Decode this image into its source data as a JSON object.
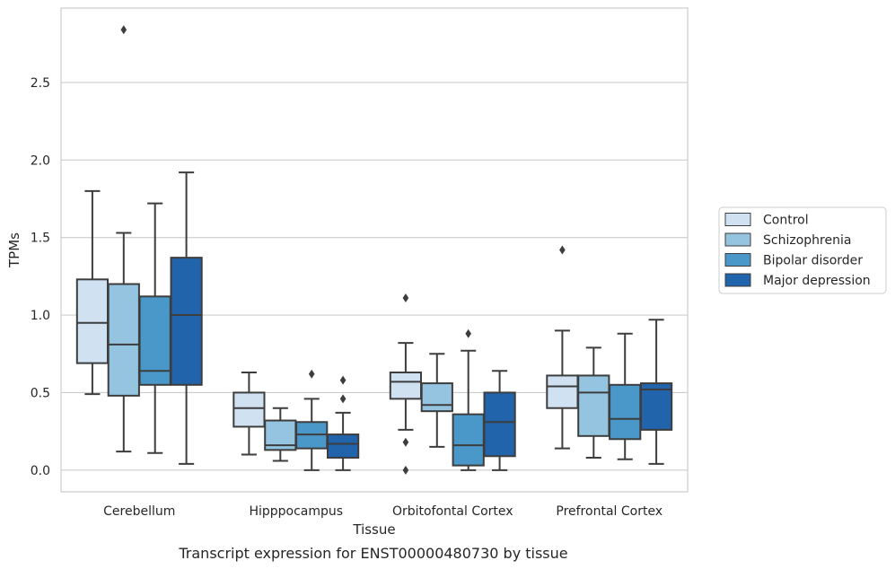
{
  "chart_data": {
    "type": "boxplot",
    "xlabel": "Tissue",
    "ylabel": "TPMs",
    "caption": "Transcript expression for ENST00000480730 by tissue",
    "ylim": [
      -0.14,
      2.98
    ],
    "yticks": [
      0.0,
      0.5,
      1.0,
      1.5,
      2.0,
      2.5
    ],
    "ytick_labels": [
      "0.0",
      "0.5",
      "1.0",
      "1.5",
      "2.0",
      "2.5"
    ],
    "grid": "horizontal",
    "legend_position": "right",
    "categories": [
      "Cerebellum",
      "Hipppocampus",
      "Orbitofontal Cortex",
      "Prefrontal Cortex"
    ],
    "series": [
      {
        "name": "Control",
        "color": "#d0e1f2",
        "boxes": [
          {
            "whislo": 0.49,
            "q1": 0.69,
            "med": 0.95,
            "q3": 1.23,
            "whishi": 1.8,
            "fliers": []
          },
          {
            "whislo": 0.1,
            "q1": 0.28,
            "med": 0.4,
            "q3": 0.5,
            "whishi": 0.63,
            "fliers": []
          },
          {
            "whislo": 0.26,
            "q1": 0.46,
            "med": 0.57,
            "q3": 0.63,
            "whishi": 0.82,
            "fliers": [
              1.11,
              0.18,
              0.0
            ]
          },
          {
            "whislo": 0.14,
            "q1": 0.4,
            "med": 0.54,
            "q3": 0.61,
            "whishi": 0.9,
            "fliers": [
              1.42
            ]
          }
        ]
      },
      {
        "name": "Schizophrenia",
        "color": "#94c4df",
        "boxes": [
          {
            "whislo": 0.12,
            "q1": 0.48,
            "med": 0.81,
            "q3": 1.2,
            "whishi": 1.53,
            "fliers": [
              2.84
            ]
          },
          {
            "whislo": 0.06,
            "q1": 0.13,
            "med": 0.16,
            "q3": 0.32,
            "whishi": 0.4,
            "fliers": []
          },
          {
            "whislo": 0.15,
            "q1": 0.38,
            "med": 0.42,
            "q3": 0.56,
            "whishi": 0.75,
            "fliers": []
          },
          {
            "whislo": 0.08,
            "q1": 0.22,
            "med": 0.5,
            "q3": 0.61,
            "whishi": 0.79,
            "fliers": []
          }
        ]
      },
      {
        "name": "Bipolar disorder",
        "color": "#4a98c9",
        "boxes": [
          {
            "whislo": 0.11,
            "q1": 0.55,
            "med": 0.64,
            "q3": 1.12,
            "whishi": 1.72,
            "fliers": []
          },
          {
            "whislo": 0.0,
            "q1": 0.14,
            "med": 0.23,
            "q3": 0.31,
            "whishi": 0.46,
            "fliers": [
              0.62
            ]
          },
          {
            "whislo": 0.0,
            "q1": 0.03,
            "med": 0.16,
            "q3": 0.36,
            "whishi": 0.77,
            "fliers": [
              0.88
            ]
          },
          {
            "whislo": 0.07,
            "q1": 0.2,
            "med": 0.33,
            "q3": 0.55,
            "whishi": 0.88,
            "fliers": []
          }
        ]
      },
      {
        "name": "Major depression",
        "color": "#2164ab",
        "boxes": [
          {
            "whislo": 0.04,
            "q1": 0.55,
            "med": 1.0,
            "q3": 1.37,
            "whishi": 1.92,
            "fliers": []
          },
          {
            "whislo": 0.0,
            "q1": 0.08,
            "med": 0.17,
            "q3": 0.23,
            "whishi": 0.37,
            "fliers": [
              0.58,
              0.46
            ]
          },
          {
            "whislo": 0.0,
            "q1": 0.09,
            "med": 0.31,
            "q3": 0.5,
            "whishi": 0.64,
            "fliers": []
          },
          {
            "whislo": 0.04,
            "q1": 0.26,
            "med": 0.52,
            "q3": 0.56,
            "whishi": 0.97,
            "fliers": []
          }
        ]
      }
    ]
  }
}
